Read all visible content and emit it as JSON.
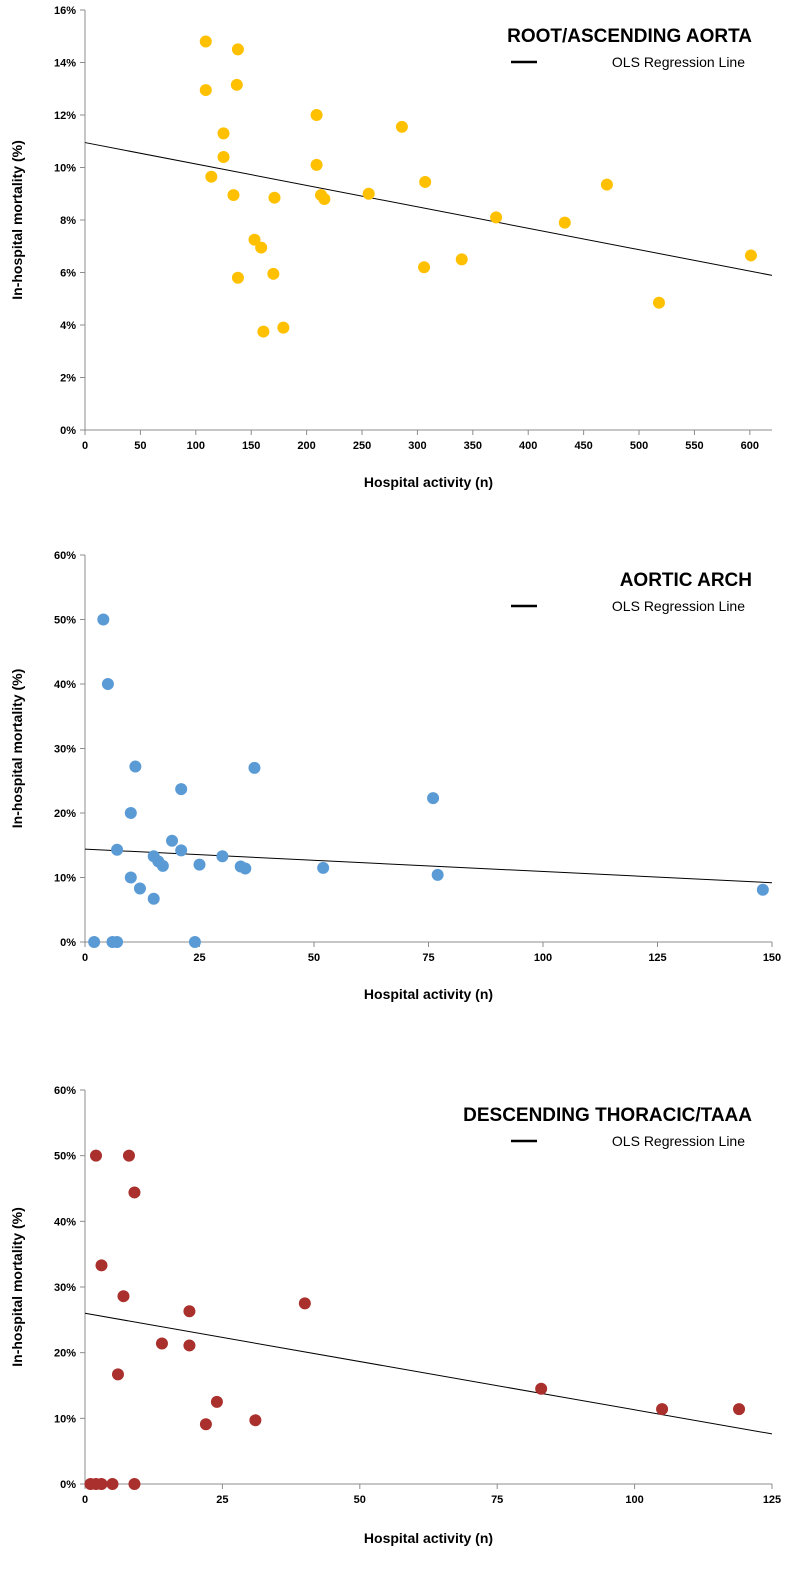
{
  "chart_data": [
    {
      "type": "scatter",
      "title": "ROOT/ASCENDING AORTA",
      "xlabel": "Hospital activity (n)",
      "ylabel": "In-hospital mortality (%)",
      "xlim": [
        0,
        620
      ],
      "ylim": [
        0,
        16
      ],
      "x_ticks": [
        0,
        50,
        100,
        150,
        200,
        250,
        300,
        350,
        400,
        450,
        500,
        550,
        600
      ],
      "y_ticks": [
        0,
        2,
        4,
        6,
        8,
        10,
        12,
        14,
        16
      ],
      "x_tick_labels": [
        "0",
        "50",
        "100",
        "150",
        "200",
        "250",
        "300",
        "350",
        "400",
        "450",
        "500",
        "550",
        "600"
      ],
      "y_tick_labels": [
        "0%",
        "2%",
        "4%",
        "6%",
        "8%",
        "10%",
        "12%",
        "14%",
        "16%"
      ],
      "legend": {
        "label": "OLS Regression Line",
        "position": "top-right"
      },
      "regression": {
        "intercept": 10.95,
        "slope": -0.00816
      },
      "marker_color": "#FFC000",
      "series": [
        {
          "points": [
            [
              109,
              14.8
            ],
            [
              138,
              14.5
            ],
            [
              109,
              12.95
            ],
            [
              137,
              13.15
            ],
            [
              125,
              11.3
            ],
            [
              125,
              10.4
            ],
            [
              114,
              9.65
            ],
            [
              134,
              8.95
            ],
            [
              171,
              8.85
            ],
            [
              153,
              7.25
            ],
            [
              159,
              6.95
            ],
            [
              170,
              5.95
            ],
            [
              138,
              5.8
            ],
            [
              161,
              3.75
            ],
            [
              179,
              3.9
            ],
            [
              209,
              12.0
            ],
            [
              209,
              10.1
            ],
            [
              213,
              8.95
            ],
            [
              216,
              8.8
            ],
            [
              256,
              9.0
            ],
            [
              286,
              11.55
            ],
            [
              307,
              9.45
            ],
            [
              306,
              6.2
            ],
            [
              340,
              6.5
            ],
            [
              371,
              8.1
            ],
            [
              433,
              7.9
            ],
            [
              471,
              9.35
            ],
            [
              518,
              4.85
            ],
            [
              601,
              6.65
            ]
          ]
        }
      ]
    },
    {
      "type": "scatter",
      "title": "AORTIC ARCH",
      "xlabel": "Hospital activity (n)",
      "ylabel": "In-hospital mortality (%)",
      "xlim": [
        0,
        150
      ],
      "ylim": [
        0,
        60
      ],
      "x_ticks": [
        0,
        25,
        50,
        75,
        100,
        125,
        150
      ],
      "y_ticks": [
        0,
        10,
        20,
        30,
        40,
        50,
        60
      ],
      "x_tick_labels": [
        "0",
        "25",
        "50",
        "75",
        "100",
        "125",
        "150"
      ],
      "y_tick_labels": [
        "0%",
        "10%",
        "20%",
        "30%",
        "40%",
        "50%",
        "60%"
      ],
      "legend": {
        "label": "OLS Regression Line",
        "position": "top-right"
      },
      "regression": {
        "intercept": 14.4,
        "slope": -0.0347
      },
      "marker_color": "#5B9BD5",
      "series": [
        {
          "points": [
            [
              4,
              50
            ],
            [
              5,
              40
            ],
            [
              11,
              27.2
            ],
            [
              37,
              27
            ],
            [
              21,
              23.7
            ],
            [
              10,
              20
            ],
            [
              76,
              22.3
            ],
            [
              19,
              15.7
            ],
            [
              7,
              14.3
            ],
            [
              21,
              14.2
            ],
            [
              15,
              13.3
            ],
            [
              16,
              12.5
            ],
            [
              30,
              13.3
            ],
            [
              17,
              11.8
            ],
            [
              25,
              12
            ],
            [
              34,
              11.7
            ],
            [
              35,
              11.4
            ],
            [
              52,
              11.5
            ],
            [
              10,
              10
            ],
            [
              12,
              8.3
            ],
            [
              77,
              10.4
            ],
            [
              148,
              8.1
            ],
            [
              15,
              6.7
            ],
            [
              2,
              0
            ],
            [
              6,
              0
            ],
            [
              7,
              0
            ],
            [
              24,
              0
            ]
          ]
        }
      ]
    },
    {
      "type": "scatter",
      "title": "DESCENDING THORACIC/TAAA",
      "xlabel": "Hospital activity (n)",
      "ylabel": "In-hospital mortality (%)",
      "xlim": [
        0,
        125
      ],
      "ylim": [
        0,
        60
      ],
      "x_ticks": [
        0,
        25,
        50,
        75,
        100,
        125
      ],
      "y_ticks": [
        0,
        10,
        20,
        30,
        40,
        50,
        60
      ],
      "x_tick_labels": [
        "0",
        "25",
        "50",
        "75",
        "100",
        "125"
      ],
      "y_tick_labels": [
        "0%",
        "10%",
        "20%",
        "30%",
        "40%",
        "50%",
        "60%"
      ],
      "legend": {
        "label": "OLS Regression Line",
        "position": "top-right"
      },
      "regression": {
        "intercept": 26.0,
        "slope": -0.147
      },
      "marker_color": "#A9302C",
      "series": [
        {
          "points": [
            [
              2,
              50
            ],
            [
              8,
              50
            ],
            [
              9,
              44.4
            ],
            [
              3,
              33.3
            ],
            [
              7,
              28.6
            ],
            [
              19,
              26.3
            ],
            [
              40,
              27.5
            ],
            [
              14,
              21.4
            ],
            [
              19,
              21.1
            ],
            [
              6,
              16.7
            ],
            [
              24,
              12.5
            ],
            [
              22,
              9.1
            ],
            [
              31,
              9.7
            ],
            [
              83,
              14.5
            ],
            [
              105,
              11.4
            ],
            [
              119,
              11.4
            ],
            [
              1,
              0
            ],
            [
              2,
              0
            ],
            [
              3,
              0
            ],
            [
              5,
              0
            ],
            [
              9,
              0
            ]
          ]
        }
      ]
    }
  ]
}
